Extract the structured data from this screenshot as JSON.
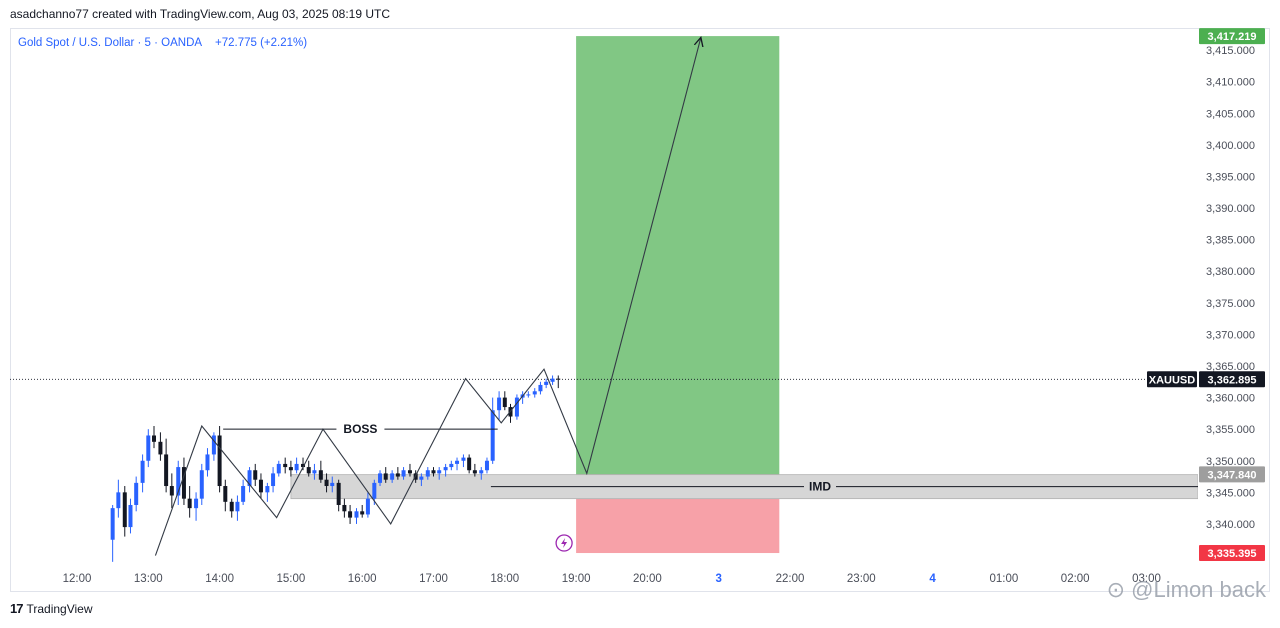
{
  "header": {
    "credit": "asadchanno77 created with TradingView.com, Aug 03, 2025 08:19 UTC"
  },
  "footer": {
    "logo_mark": "17",
    "logo_text": "TradingView"
  },
  "watermark": "⊙ @Limon back",
  "colors": {
    "bull": "#2962ff",
    "bear": "#131722",
    "target_zone": "#81c784",
    "stop_zone": "#f7a1a8",
    "imd_zone": "#d6d6d6",
    "target_label": "#4caf50",
    "stop_label": "#f23645",
    "symbol_label": "#131722"
  },
  "chart_data": {
    "type": "candlestick",
    "title": "Gold Spot / U.S. Dollar · 5 · OANDA",
    "change": "+72.775 (+2.21%)",
    "x_tick_labels": [
      "12:00",
      "13:00",
      "14:00",
      "15:00",
      "16:00",
      "17:00",
      "18:00",
      "19:00",
      "20:00",
      "3",
      "22:00",
      "23:00",
      "4",
      "01:00",
      "02:00",
      "03:00"
    ],
    "x_tick_hours": [
      12,
      13,
      14,
      15,
      16,
      17,
      18,
      19,
      20,
      21,
      22,
      23,
      24,
      25,
      26,
      27
    ],
    "y_range": [
      3333.5,
      3418.5
    ],
    "y_ticks": [
      3340,
      3345,
      3350,
      3355,
      3360,
      3365,
      3370,
      3375,
      3380,
      3385,
      3390,
      3395,
      3400,
      3405,
      3410,
      3415
    ],
    "y_tick_labels": [
      "3,340.000",
      "3,345.000",
      "3,350.000",
      "3,355.000",
      "3,360.000",
      "3,365.000",
      "3,370.000",
      "3,375.000",
      "3,380.000",
      "3,385.000",
      "3,390.000",
      "3,395.000",
      "3,400.000",
      "3,405.000",
      "3,410.000",
      "3,415.000"
    ],
    "price_labels": {
      "target": {
        "value": 3417.219,
        "text": "3,417.219"
      },
      "current": {
        "symbol": "XAUUSD",
        "value": 3362.895,
        "text": "3,362.895"
      },
      "entry": {
        "value": 3347.84,
        "text": "3,347.840"
      },
      "stop": {
        "value": 3335.395,
        "text": "3,335.395"
      }
    },
    "candles": [
      [
        12.5,
        3337.5,
        3343.0,
        3334.0,
        3342.5
      ],
      [
        12.58,
        3342.5,
        3347.0,
        3341.0,
        3345.0
      ],
      [
        12.67,
        3345.0,
        3346.0,
        3338.0,
        3339.5
      ],
      [
        12.75,
        3339.5,
        3344.0,
        3338.5,
        3343.0
      ],
      [
        12.83,
        3343.0,
        3347.5,
        3342.0,
        3346.5
      ],
      [
        12.92,
        3346.5,
        3351.0,
        3345.0,
        3350.0
      ],
      [
        13.0,
        3350.0,
        3355.0,
        3349.0,
        3354.0
      ],
      [
        13.08,
        3354.0,
        3355.5,
        3352.0,
        3353.0
      ],
      [
        13.17,
        3353.0,
        3354.5,
        3350.0,
        3351.0
      ],
      [
        13.25,
        3351.0,
        3353.5,
        3345.0,
        3346.0
      ],
      [
        13.33,
        3346.0,
        3348.0,
        3342.5,
        3344.5
      ],
      [
        13.42,
        3344.5,
        3350.0,
        3343.0,
        3349.0
      ],
      [
        13.5,
        3349.0,
        3350.5,
        3343.0,
        3344.0
      ],
      [
        13.58,
        3344.0,
        3346.0,
        3341.0,
        3342.5
      ],
      [
        13.67,
        3342.5,
        3345.0,
        3340.5,
        3344.0
      ],
      [
        13.75,
        3344.0,
        3349.5,
        3343.0,
        3348.5
      ],
      [
        13.83,
        3348.5,
        3352.0,
        3347.5,
        3351.0
      ],
      [
        13.92,
        3351.0,
        3354.5,
        3350.0,
        3354.0
      ],
      [
        14.0,
        3354.0,
        3355.5,
        3345.0,
        3346.0
      ],
      [
        14.08,
        3346.0,
        3347.0,
        3342.0,
        3343.5
      ],
      [
        14.17,
        3343.5,
        3344.0,
        3341.0,
        3342.0
      ],
      [
        14.25,
        3342.0,
        3344.5,
        3340.5,
        3343.5
      ],
      [
        14.33,
        3343.5,
        3347.0,
        3343.0,
        3346.0
      ],
      [
        14.42,
        3346.0,
        3349.0,
        3345.0,
        3348.5
      ],
      [
        14.5,
        3348.5,
        3349.5,
        3346.0,
        3347.0
      ],
      [
        14.58,
        3347.0,
        3348.0,
        3344.0,
        3345.0
      ],
      [
        14.67,
        3345.0,
        3346.5,
        3343.5,
        3346.0
      ],
      [
        14.75,
        3346.0,
        3349.0,
        3345.0,
        3348.0
      ],
      [
        14.83,
        3348.0,
        3350.0,
        3347.5,
        3349.5
      ],
      [
        14.92,
        3349.5,
        3350.5,
        3348.0,
        3349.0
      ],
      [
        15.0,
        3349.0,
        3350.0,
        3347.5,
        3348.5
      ],
      [
        15.08,
        3348.5,
        3350.5,
        3348.0,
        3349.5
      ],
      [
        15.17,
        3349.5,
        3350.5,
        3348.5,
        3349.0
      ],
      [
        15.25,
        3349.0,
        3350.0,
        3347.5,
        3348.0
      ],
      [
        15.33,
        3348.0,
        3349.5,
        3347.0,
        3348.5
      ],
      [
        15.42,
        3348.5,
        3350.0,
        3346.5,
        3347.0
      ],
      [
        15.5,
        3347.0,
        3348.0,
        3345.0,
        3346.0
      ],
      [
        15.58,
        3346.0,
        3347.5,
        3345.0,
        3346.5
      ],
      [
        15.67,
        3346.5,
        3347.0,
        3342.0,
        3343.0
      ],
      [
        15.75,
        3343.0,
        3344.0,
        3341.0,
        3342.0
      ],
      [
        15.83,
        3342.0,
        3343.0,
        3340.0,
        3341.0
      ],
      [
        15.92,
        3341.0,
        3342.5,
        3340.0,
        3342.0
      ],
      [
        16.0,
        3342.0,
        3343.0,
        3341.0,
        3341.5
      ],
      [
        16.08,
        3341.5,
        3345.0,
        3341.0,
        3344.0
      ],
      [
        16.17,
        3344.0,
        3347.0,
        3343.0,
        3346.5
      ],
      [
        16.25,
        3346.5,
        3348.5,
        3346.0,
        3348.0
      ],
      [
        16.33,
        3348.0,
        3349.0,
        3346.5,
        3347.0
      ],
      [
        16.42,
        3347.0,
        3348.5,
        3346.5,
        3348.0
      ],
      [
        16.5,
        3348.0,
        3349.0,
        3347.0,
        3347.5
      ],
      [
        16.58,
        3347.5,
        3349.0,
        3347.0,
        3348.5
      ],
      [
        16.67,
        3348.5,
        3349.5,
        3347.5,
        3348.0
      ],
      [
        16.75,
        3348.0,
        3348.5,
        3346.5,
        3347.0
      ],
      [
        16.83,
        3347.0,
        3348.0,
        3346.0,
        3347.5
      ],
      [
        16.92,
        3347.5,
        3349.0,
        3347.0,
        3348.5
      ],
      [
        17.0,
        3348.5,
        3349.0,
        3347.5,
        3348.0
      ],
      [
        17.08,
        3348.0,
        3349.0,
        3347.0,
        3348.5
      ],
      [
        17.17,
        3348.5,
        3349.5,
        3347.5,
        3349.0
      ],
      [
        17.25,
        3349.0,
        3350.0,
        3348.5,
        3349.5
      ],
      [
        17.33,
        3349.5,
        3350.5,
        3348.5,
        3350.0
      ],
      [
        17.42,
        3350.0,
        3351.0,
        3349.0,
        3350.5
      ],
      [
        17.5,
        3350.5,
        3351.0,
        3348.0,
        3348.5
      ],
      [
        17.58,
        3348.5,
        3349.5,
        3347.5,
        3348.0
      ],
      [
        17.67,
        3348.0,
        3349.0,
        3347.0,
        3348.5
      ],
      [
        17.75,
        3348.5,
        3350.5,
        3348.0,
        3350.0
      ],
      [
        17.83,
        3350.0,
        3360.0,
        3349.5,
        3358.0
      ],
      [
        17.92,
        3358.0,
        3361.0,
        3356.5,
        3360.0
      ],
      [
        18.0,
        3360.0,
        3361.0,
        3358.0,
        3358.5
      ],
      [
        18.08,
        3358.5,
        3359.0,
        3356.0,
        3357.0
      ],
      [
        18.17,
        3357.0,
        3360.5,
        3356.5,
        3360.0
      ],
      [
        18.25,
        3360.0,
        3361.0,
        3359.0,
        3360.5
      ],
      [
        18.33,
        3360.5,
        3361.0,
        3360.0,
        3360.5
      ],
      [
        18.42,
        3360.5,
        3361.5,
        3360.0,
        3361.0
      ],
      [
        18.5,
        3361.0,
        3362.5,
        3360.5,
        3362.0
      ],
      [
        18.58,
        3362.0,
        3363.0,
        3361.5,
        3362.5
      ],
      [
        18.67,
        3362.5,
        3363.5,
        3362.0,
        3363.0
      ],
      [
        18.75,
        3363.0,
        3363.5,
        3361.5,
        3362.9
      ]
    ],
    "zigzag": [
      [
        13.1,
        3335.0
      ],
      [
        13.75,
        3355.5
      ],
      [
        14.8,
        3341.0
      ],
      [
        15.45,
        3355.0
      ],
      [
        16.4,
        3340.0
      ],
      [
        17.45,
        3363.0
      ],
      [
        17.95,
        3356.0
      ],
      [
        18.55,
        3364.5
      ],
      [
        19.15,
        3348.0
      ],
      [
        20.75,
        3417.0
      ]
    ],
    "boss_line": {
      "label": "BOSS",
      "x": [
        14.05,
        17.9
      ],
      "y": 3355.0
    },
    "imd_zone": {
      "label": "IMD",
      "x": [
        15.0,
        28.0
      ],
      "y": [
        3344.0,
        3347.8
      ]
    },
    "position": {
      "x": [
        19.0,
        21.85
      ],
      "entry": 3347.84,
      "target": 3417.219,
      "stop": 3335.395
    }
  }
}
